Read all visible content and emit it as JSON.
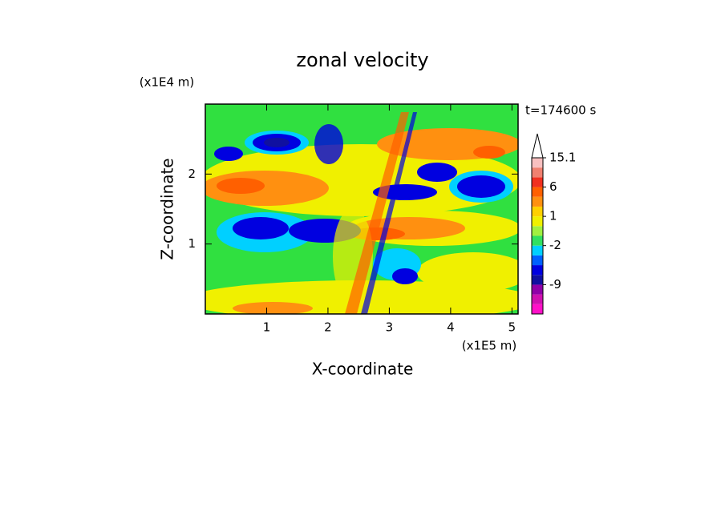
{
  "chart_data": {
    "type": "contour",
    "title": "zonal velocity",
    "x_label": "X-coordinate",
    "y_label": "Z-coordinate",
    "x_unit": "(x1E5 m)",
    "y_unit": "(x1E4 m)",
    "time_label": "t=174600 s",
    "xlim": [
      0,
      5.1
    ],
    "ylim": [
      0,
      3
    ],
    "xticks": [
      1,
      2,
      3,
      4,
      5
    ],
    "yticks": [
      1,
      2
    ],
    "colorbar": {
      "boundaries": [
        -18,
        -15,
        -12,
        -9,
        -7,
        -5,
        -3,
        -2,
        -1,
        0,
        1,
        2,
        4,
        6,
        9,
        12,
        15.1
      ],
      "colors": [
        "#ff10c8",
        "#d010b0",
        "#9000a8",
        "#1010a0",
        "#0000e0",
        "#0060ff",
        "#00d0ff",
        "#30e060",
        "#a0f040",
        "#f0f000",
        "#ffd000",
        "#ff9010",
        "#ff6000",
        "#f03020",
        "#f08070",
        "#f8c0c0"
      ],
      "ticks": [
        15.1,
        6,
        1,
        -2,
        -9
      ]
    }
  }
}
